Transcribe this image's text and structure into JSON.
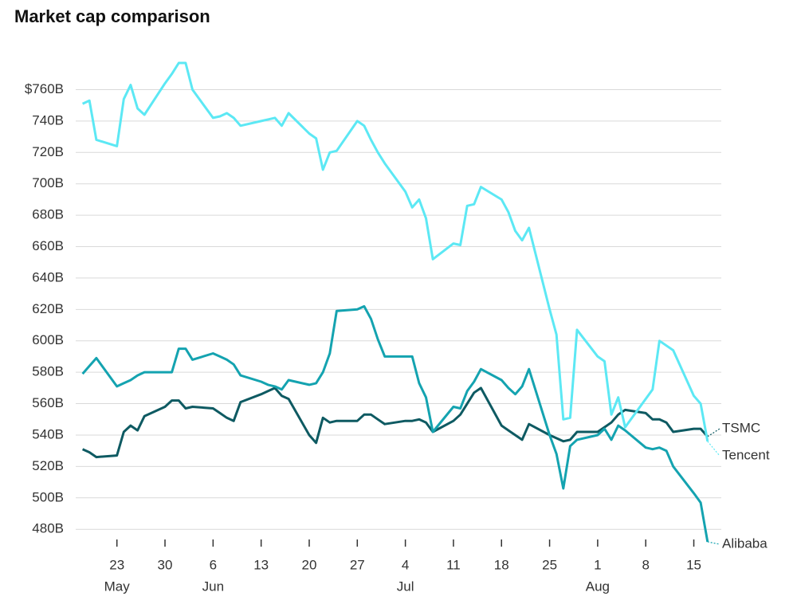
{
  "chart_data": {
    "type": "line",
    "title": "Market cap comparison",
    "x": [
      "May 18",
      "May 19",
      "May 20",
      "May 23",
      "May 24",
      "May 25",
      "May 26",
      "May 27",
      "May 30",
      "May 31",
      "Jun 1",
      "Jun 2",
      "Jun 3",
      "Jun 6",
      "Jun 7",
      "Jun 8",
      "Jun 9",
      "Jun 10",
      "Jun 13",
      "Jun 14",
      "Jun 15",
      "Jun 16",
      "Jun 17",
      "Jun 20",
      "Jun 21",
      "Jun 22",
      "Jun 23",
      "Jun 24",
      "Jun 27",
      "Jun 28",
      "Jun 29",
      "Jun 30",
      "Jul 1",
      "Jul 4",
      "Jul 5",
      "Jul 6",
      "Jul 7",
      "Jul 8",
      "Jul 11",
      "Jul 12",
      "Jul 13",
      "Jul 14",
      "Jul 15",
      "Jul 18",
      "Jul 19",
      "Jul 20",
      "Jul 21",
      "Jul 22",
      "Jul 25",
      "Jul 26",
      "Jul 27",
      "Jul 28",
      "Jul 29",
      "Aug 1",
      "Aug 2",
      "Aug 3",
      "Aug 4",
      "Aug 5",
      "Aug 8",
      "Aug 9",
      "Aug 10",
      "Aug 11",
      "Aug 12",
      "Aug 15",
      "Aug 16",
      "Aug 17"
    ],
    "series": [
      {
        "name": "TSMC",
        "color": "#0e5a62",
        "values": [
          531,
          529,
          526,
          527,
          542,
          546,
          543,
          552,
          558,
          562,
          562,
          557,
          558,
          557,
          554,
          551,
          549,
          561,
          566,
          568,
          570,
          565,
          563,
          540,
          535,
          551,
          548,
          549,
          549,
          553,
          553,
          550,
          547,
          549,
          549,
          550,
          548,
          542,
          549,
          553,
          560,
          567,
          570,
          546,
          543,
          540,
          537,
          547,
          540,
          538,
          536,
          537,
          542,
          542,
          545,
          548,
          553,
          556,
          554,
          550,
          550,
          548,
          542,
          544,
          544,
          539
        ]
      },
      {
        "name": "Tencent",
        "color": "#5ce8f4",
        "values": [
          751,
          753,
          728,
          724,
          754,
          763,
          748,
          744,
          764,
          770,
          777,
          777,
          760,
          742,
          743,
          745,
          742,
          737,
          740,
          741,
          742,
          737,
          745,
          732,
          729,
          709,
          720,
          721,
          740,
          737,
          728,
          720,
          713,
          695,
          685,
          690,
          678,
          652,
          662,
          661,
          686,
          687,
          698,
          690,
          682,
          670,
          664,
          672,
          620,
          604,
          550,
          551,
          607,
          590,
          587,
          553,
          564,
          545,
          563,
          569,
          600,
          597,
          594,
          565,
          560,
          536
        ]
      },
      {
        "name": "Alibaba",
        "color": "#14a3b0",
        "values": [
          579,
          584,
          589,
          571,
          573,
          575,
          578,
          580,
          580,
          580,
          595,
          595,
          588,
          592,
          590,
          588,
          585,
          578,
          574,
          572,
          571,
          569,
          575,
          572,
          573,
          580,
          592,
          619,
          620,
          622,
          614,
          601,
          590,
          590,
          590,
          573,
          564,
          542,
          558,
          557,
          568,
          574,
          582,
          575,
          570,
          566,
          571,
          582,
          540,
          528,
          506,
          533,
          537,
          540,
          544,
          537,
          546,
          543,
          532,
          531,
          532,
          530,
          520,
          503,
          497,
          472
        ]
      }
    ],
    "xlim": [
      "May 17",
      "Aug 19"
    ],
    "xticks": [
      {
        "value": "May 23",
        "label": "23",
        "month": "May"
      },
      {
        "value": "May 30",
        "label": "30"
      },
      {
        "value": "Jun 6",
        "label": "6",
        "month": "Jun"
      },
      {
        "value": "Jun 13",
        "label": "13"
      },
      {
        "value": "Jun 20",
        "label": "20"
      },
      {
        "value": "Jun 27",
        "label": "27"
      },
      {
        "value": "Jul 4",
        "label": "4",
        "month": "Jul"
      },
      {
        "value": "Jul 11",
        "label": "11"
      },
      {
        "value": "Jul 18",
        "label": "18"
      },
      {
        "value": "Jul 25",
        "label": "25"
      },
      {
        "value": "Aug 1",
        "label": "1",
        "month": "Aug"
      },
      {
        "value": "Aug 8",
        "label": "8"
      },
      {
        "value": "Aug 15",
        "label": "15"
      }
    ],
    "ylim": [
      473.5,
      778
    ],
    "yticks": [
      {
        "value": 480,
        "label": "480B"
      },
      {
        "value": 500,
        "label": "500B"
      },
      {
        "value": 520,
        "label": "520B"
      },
      {
        "value": 540,
        "label": "540B"
      },
      {
        "value": 560,
        "label": "560B"
      },
      {
        "value": 580,
        "label": "580B"
      },
      {
        "value": 600,
        "label": "600B"
      },
      {
        "value": 620,
        "label": "620B"
      },
      {
        "value": 640,
        "label": "640B"
      },
      {
        "value": 660,
        "label": "660B"
      },
      {
        "value": 680,
        "label": "680B"
      },
      {
        "value": 700,
        "label": "700B"
      },
      {
        "value": 720,
        "label": "720B"
      },
      {
        "value": 740,
        "label": "740B"
      },
      {
        "value": 760,
        "label": "$760B"
      }
    ],
    "grid": true
  }
}
